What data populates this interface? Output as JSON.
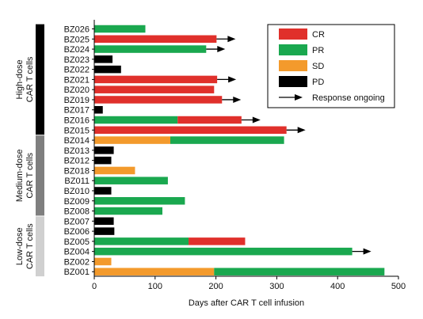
{
  "chart_data": {
    "type": "bar",
    "orientation": "horizontal-stacked",
    "xlabel": "Days after CAR T cell infusion",
    "xlim": [
      0,
      500
    ],
    "xticks": [
      "0",
      "100",
      "200",
      "300",
      "400",
      "500"
    ],
    "colors": {
      "CR": "#e0302b",
      "PR": "#1aa84f",
      "SD": "#f39a2c",
      "PD": "#000000"
    },
    "legend": {
      "position": "top-right",
      "entries": [
        {
          "key": "CR",
          "label": "CR"
        },
        {
          "key": "PR",
          "label": "PR"
        },
        {
          "key": "SD",
          "label": "SD"
        },
        {
          "key": "PD",
          "label": "PD"
        },
        {
          "key": "arrow",
          "label": "Response ongoing"
        }
      ]
    },
    "groups": [
      {
        "label": "High-dose CAR T cells",
        "label_lines": [
          "High-dose",
          "CAR T cells"
        ],
        "color": "#000000",
        "first": "BZ026",
        "last": "BZ015"
      },
      {
        "label": "Medium-dose CAR T cells",
        "label_lines": [
          "Medium-dose",
          "CAR T cells"
        ],
        "color": "#7f7f7f",
        "first": "BZ014",
        "last": "BZ008"
      },
      {
        "label": "Low-dose CAR T cells",
        "label_lines": [
          "Low-dose",
          "CAR T cells"
        ],
        "color": "#d0d0d0",
        "first": "BZ007",
        "last": "BZ001"
      }
    ],
    "patients": [
      {
        "id": "BZ026",
        "segments": [
          {
            "status": "PR",
            "start": 0,
            "end": 84
          }
        ],
        "ongoing": false
      },
      {
        "id": "BZ025",
        "segments": [
          {
            "status": "CR",
            "start": 0,
            "end": 201
          }
        ],
        "ongoing": true
      },
      {
        "id": "BZ024",
        "segments": [
          {
            "status": "PR",
            "start": 0,
            "end": 184
          }
        ],
        "ongoing": true
      },
      {
        "id": "BZ023",
        "segments": [
          {
            "status": "PD",
            "start": 0,
            "end": 30
          }
        ],
        "ongoing": false
      },
      {
        "id": "BZ022",
        "segments": [
          {
            "status": "PD",
            "start": 0,
            "end": 44
          }
        ],
        "ongoing": false
      },
      {
        "id": "BZ021",
        "segments": [
          {
            "status": "CR",
            "start": 0,
            "end": 202
          }
        ],
        "ongoing": true
      },
      {
        "id": "BZ020",
        "segments": [
          {
            "status": "CR",
            "start": 0,
            "end": 197
          }
        ],
        "ongoing": false
      },
      {
        "id": "BZ019",
        "segments": [
          {
            "status": "CR",
            "start": 0,
            "end": 210
          }
        ],
        "ongoing": true
      },
      {
        "id": "BZ017",
        "segments": [
          {
            "status": "PD",
            "start": 0,
            "end": 14
          }
        ],
        "ongoing": false
      },
      {
        "id": "BZ016",
        "segments": [
          {
            "status": "PR",
            "start": 0,
            "end": 137
          },
          {
            "status": "CR",
            "start": 137,
            "end": 242
          }
        ],
        "ongoing": true
      },
      {
        "id": "BZ015",
        "segments": [
          {
            "status": "CR",
            "start": 0,
            "end": 316
          }
        ],
        "ongoing": true
      },
      {
        "id": "BZ014",
        "segments": [
          {
            "status": "SD",
            "start": 0,
            "end": 125
          },
          {
            "status": "PR",
            "start": 125,
            "end": 312
          }
        ],
        "ongoing": false
      },
      {
        "id": "BZ013",
        "segments": [
          {
            "status": "PD",
            "start": 0,
            "end": 32
          }
        ],
        "ongoing": false
      },
      {
        "id": "BZ012",
        "segments": [
          {
            "status": "PD",
            "start": 0,
            "end": 28
          }
        ],
        "ongoing": false
      },
      {
        "id": "BZ018",
        "segments": [
          {
            "status": "SD",
            "start": 0,
            "end": 67
          }
        ],
        "ongoing": false
      },
      {
        "id": "BZ011",
        "segments": [
          {
            "status": "PR",
            "start": 0,
            "end": 121
          }
        ],
        "ongoing": false
      },
      {
        "id": "BZ010",
        "segments": [
          {
            "status": "PD",
            "start": 0,
            "end": 28
          }
        ],
        "ongoing": false
      },
      {
        "id": "BZ009",
        "segments": [
          {
            "status": "PR",
            "start": 0,
            "end": 149
          }
        ],
        "ongoing": false
      },
      {
        "id": "BZ008",
        "segments": [
          {
            "status": "PR",
            "start": 0,
            "end": 112
          }
        ],
        "ongoing": false
      },
      {
        "id": "BZ007",
        "segments": [
          {
            "status": "PD",
            "start": 0,
            "end": 32
          }
        ],
        "ongoing": false
      },
      {
        "id": "BZ006",
        "segments": [
          {
            "status": "PD",
            "start": 0,
            "end": 33
          }
        ],
        "ongoing": false
      },
      {
        "id": "BZ005",
        "segments": [
          {
            "status": "PR",
            "start": 0,
            "end": 155
          },
          {
            "status": "CR",
            "start": 155,
            "end": 248
          }
        ],
        "ongoing": false
      },
      {
        "id": "BZ004",
        "segments": [
          {
            "status": "PR",
            "start": 0,
            "end": 424
          }
        ],
        "ongoing": true
      },
      {
        "id": "BZ002",
        "segments": [
          {
            "status": "SD",
            "start": 0,
            "end": 28
          }
        ],
        "ongoing": false
      },
      {
        "id": "BZ001",
        "segments": [
          {
            "status": "SD",
            "start": 0,
            "end": 197
          },
          {
            "status": "PR",
            "start": 197,
            "end": 477
          }
        ],
        "ongoing": false
      }
    ]
  }
}
